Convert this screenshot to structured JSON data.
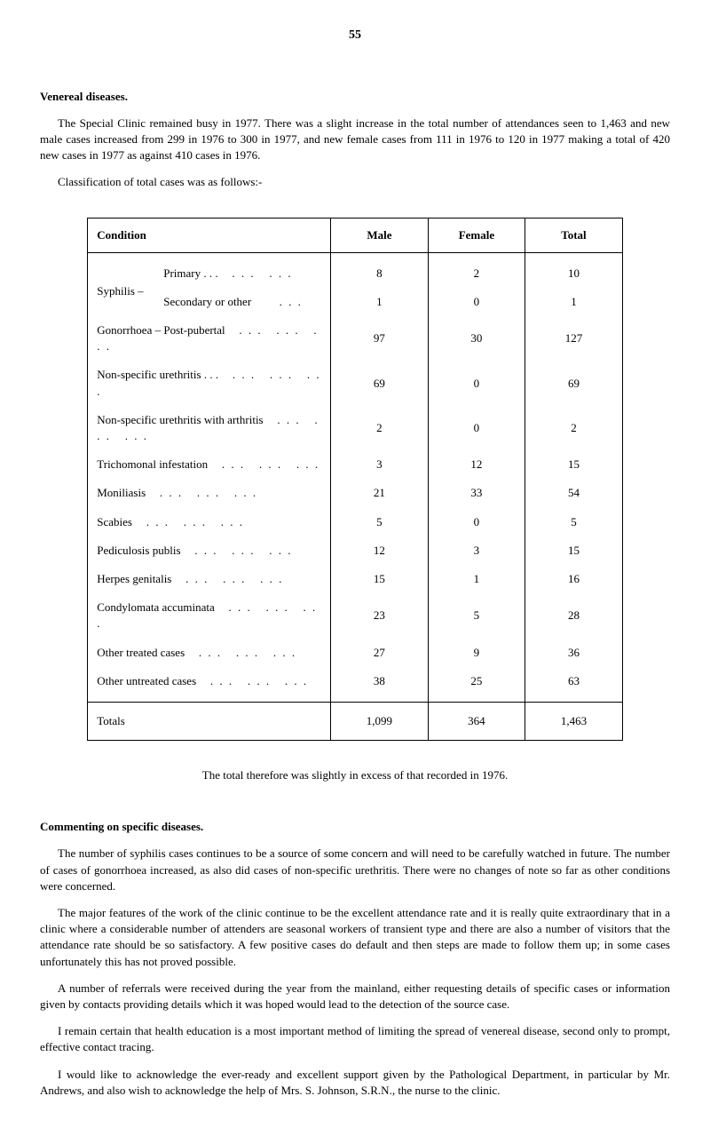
{
  "page_number": "55",
  "heading1": "Venereal diseases.",
  "para1": "The Special Clinic remained busy in 1977. There was a slight increase in the total number of attendances seen to 1,463 and new male cases increased from 299 in 1976 to 300 in 1977, and new female cases from 111 in 1976 to 120 in 1977 making a total of 420 new cases in 1977 as against 410 cases in 1976.",
  "para2": "Classification of total cases was as follows:-",
  "table": {
    "headers": {
      "condition": "Condition",
      "male": "Male",
      "female": "Female",
      "total": "Total"
    },
    "rows": [
      {
        "condition": "Primary . . .",
        "male": "8",
        "female": "2",
        "total": "10",
        "prefix": "Syphilis –"
      },
      {
        "condition": "Secondary or other",
        "male": "1",
        "female": "0",
        "total": "1",
        "prefix": ""
      },
      {
        "condition": "Gonorrhoea – Post-pubertal",
        "male": "97",
        "female": "30",
        "total": "127"
      },
      {
        "condition": "Non-specific urethritis . . .",
        "male": "69",
        "female": "0",
        "total": "69"
      },
      {
        "condition": "Non-specific urethritis with arthritis",
        "male": "2",
        "female": "0",
        "total": "2"
      },
      {
        "condition": "Trichomonal infestation",
        "male": "3",
        "female": "12",
        "total": "15"
      },
      {
        "condition": "Moniliasis",
        "male": "21",
        "female": "33",
        "total": "54"
      },
      {
        "condition": "Scabies",
        "male": "5",
        "female": "0",
        "total": "5"
      },
      {
        "condition": "Pediculosis publis",
        "male": "12",
        "female": "3",
        "total": "15"
      },
      {
        "condition": "Herpes genitalis",
        "male": "15",
        "female": "1",
        "total": "16"
      },
      {
        "condition": "Condylomata accuminata",
        "male": "23",
        "female": "5",
        "total": "28"
      },
      {
        "condition": "Other treated cases",
        "male": "27",
        "female": "9",
        "total": "36"
      },
      {
        "condition": "Other untreated cases",
        "male": "38",
        "female": "25",
        "total": "63"
      }
    ],
    "totals": {
      "label": "Totals",
      "male": "1,099",
      "female": "364",
      "total": "1,463"
    }
  },
  "caption": "The total therefore was slightly in excess of that recorded in 1976.",
  "heading2": "Commenting on specific diseases.",
  "para3": "The number of syphilis cases continues to be a source of some concern and will need to be carefully watched in future. The number of cases of gonorrhoea increased, as also did cases of non-specific urethritis. There were no changes of note so far as other conditions were concerned.",
  "para4": "The major features of the work of the clinic continue to be the excellent attendance rate and it is really quite extraordinary that in a clinic where a considerable number of attenders are seasonal workers of transient type and there are also a number of visitors that the attendance rate should be so satisfactory. A few positive cases do default and then steps are made to follow them up; in some cases unfortunately this has not proved possible.",
  "para5": "A number of referrals were received during the year from the mainland, either requesting details of specific cases or information given by contacts providing details which it was hoped would lead to the detection of the source case.",
  "para6": "I remain certain that health education is a most important method of limiting the spread of venereal disease, second only to prompt, effective contact tracing.",
  "para7": "I would like to acknowledge the ever-ready and excellent support given by the Pathological Department, in particular by Mr. Andrews, and also wish to acknowledge the help of Mrs. S. Johnson, S.R.N., the nurse to the clinic."
}
